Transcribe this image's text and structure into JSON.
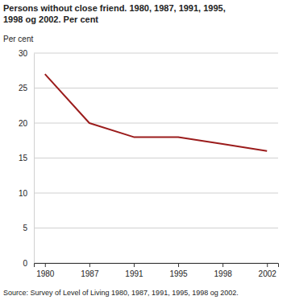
{
  "chart_data": {
    "type": "line",
    "title": "Persons without close friend. 1980, 1987, 1991, 1995, 1998 og 2002. Per cent",
    "y_label": "Per cent",
    "source": "Source: Survey of Level of Living 1980, 1987, 1991, 1995, 1998 og 2002.",
    "categories": [
      "1980",
      "1987",
      "1991",
      "1995",
      "1998",
      "2002"
    ],
    "values": [
      27,
      20,
      18,
      18,
      17,
      16
    ],
    "color": "#9b1c1c",
    "ylim": [
      0,
      30
    ],
    "yticks": [
      0,
      5,
      10,
      15,
      20,
      25,
      30
    ],
    "grid": true
  }
}
